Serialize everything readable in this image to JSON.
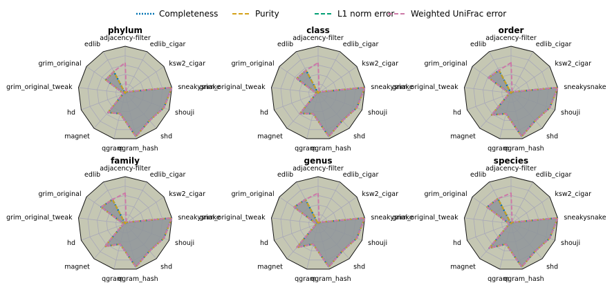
{
  "chart_data": {
    "type": "radar",
    "axes": [
      "adjacency-filter",
      "edlib_cigar",
      "ksw2_cigar",
      "sneakysnake",
      "shouji",
      "shd",
      "qgram_hash",
      "qgram",
      "magnet",
      "hd",
      "grim_original_tweak",
      "grim_original",
      "edlib"
    ],
    "rlim": [
      0,
      1
    ],
    "grid": true,
    "legend_position": "top",
    "series_styles": [
      {
        "name": "Completeness",
        "color": "#0072B2",
        "dash": "dotted"
      },
      {
        "name": "Purity",
        "color": "#D4A017",
        "dash": "dashed"
      },
      {
        "name": "L1 norm error",
        "color": "#009E73",
        "dash": "dashed"
      },
      {
        "name": "Weighted UniFrac error",
        "color": "#CC79A7",
        "dash": "dashed"
      }
    ],
    "panels": [
      {
        "title": "phylum",
        "series": [
          {
            "name": "Completeness",
            "values": [
              0.0,
              0.05,
              0.05,
              1.0,
              0.88,
              0.78,
              0.95,
              0.45,
              0.55,
              0.05,
              0.05,
              0.5,
              0.52
            ]
          },
          {
            "name": "Purity",
            "values": [
              0.0,
              0.05,
              0.05,
              1.0,
              0.88,
              0.78,
              0.95,
              0.45,
              0.55,
              0.05,
              0.05,
              0.5,
              0.52
            ]
          },
          {
            "name": "L1 norm error",
            "values": [
              0.0,
              0.05,
              0.05,
              1.0,
              0.88,
              0.78,
              0.95,
              0.45,
              0.55,
              0.05,
              0.05,
              0.5,
              0.52
            ]
          },
          {
            "name": "Weighted UniFrac error",
            "values": [
              0.65,
              0.05,
              0.05,
              1.0,
              0.88,
              0.78,
              0.95,
              0.45,
              0.55,
              0.05,
              0.05,
              0.5,
              0.52
            ]
          }
        ]
      },
      {
        "title": "class",
        "series": [
          {
            "name": "Completeness",
            "values": [
              0.0,
              0.05,
              0.05,
              1.0,
              0.88,
              0.78,
              0.95,
              0.45,
              0.58,
              0.05,
              0.05,
              0.55,
              0.55
            ]
          },
          {
            "name": "Purity",
            "values": [
              0.0,
              0.05,
              0.05,
              1.0,
              0.88,
              0.78,
              0.95,
              0.45,
              0.58,
              0.05,
              0.05,
              0.55,
              0.55
            ]
          },
          {
            "name": "L1 norm error",
            "values": [
              0.0,
              0.05,
              0.05,
              1.0,
              0.88,
              0.78,
              0.95,
              0.45,
              0.58,
              0.05,
              0.05,
              0.55,
              0.55
            ]
          },
          {
            "name": "Weighted UniFrac error",
            "values": [
              0.65,
              0.05,
              0.05,
              1.0,
              0.88,
              0.78,
              0.95,
              0.45,
              0.58,
              0.05,
              0.05,
              0.55,
              0.55
            ]
          }
        ]
      },
      {
        "title": "order",
        "series": [
          {
            "name": "Completeness",
            "values": [
              0.0,
              0.05,
              0.05,
              1.0,
              0.88,
              0.78,
              0.95,
              0.45,
              0.62,
              0.05,
              0.05,
              0.58,
              0.55
            ]
          },
          {
            "name": "Purity",
            "values": [
              0.0,
              0.05,
              0.05,
              1.0,
              0.88,
              0.78,
              0.95,
              0.45,
              0.62,
              0.05,
              0.05,
              0.58,
              0.55
            ]
          },
          {
            "name": "L1 norm error",
            "values": [
              0.0,
              0.05,
              0.05,
              1.0,
              0.88,
              0.78,
              0.95,
              0.45,
              0.62,
              0.05,
              0.05,
              0.58,
              0.55
            ]
          },
          {
            "name": "Weighted UniFrac error",
            "values": [
              0.65,
              0.05,
              0.05,
              1.0,
              0.88,
              0.78,
              0.95,
              0.45,
              0.62,
              0.05,
              0.05,
              0.58,
              0.55
            ]
          }
        ]
      },
      {
        "title": "family",
        "series": [
          {
            "name": "Completeness",
            "values": [
              0.0,
              0.05,
              0.05,
              1.0,
              0.88,
              0.78,
              0.95,
              0.45,
              0.65,
              0.05,
              0.05,
              0.62,
              0.58
            ]
          },
          {
            "name": "Purity",
            "values": [
              0.0,
              0.05,
              0.05,
              1.0,
              0.88,
              0.78,
              0.95,
              0.45,
              0.65,
              0.05,
              0.05,
              0.62,
              0.58
            ]
          },
          {
            "name": "L1 norm error",
            "values": [
              0.0,
              0.05,
              0.05,
              1.0,
              0.88,
              0.78,
              0.95,
              0.45,
              0.65,
              0.05,
              0.05,
              0.62,
              0.58
            ]
          },
          {
            "name": "Weighted UniFrac error",
            "values": [
              0.65,
              0.05,
              0.05,
              1.0,
              0.88,
              0.78,
              0.95,
              0.45,
              0.65,
              0.05,
              0.05,
              0.62,
              0.58
            ]
          }
        ]
      },
      {
        "title": "genus",
        "series": [
          {
            "name": "Completeness",
            "values": [
              0.0,
              0.05,
              0.05,
              1.0,
              0.88,
              0.78,
              0.95,
              0.45,
              0.68,
              0.05,
              0.05,
              0.62,
              0.58
            ]
          },
          {
            "name": "Purity",
            "values": [
              0.0,
              0.05,
              0.05,
              1.0,
              0.88,
              0.78,
              0.95,
              0.45,
              0.68,
              0.05,
              0.05,
              0.62,
              0.58
            ]
          },
          {
            "name": "L1 norm error",
            "values": [
              0.0,
              0.05,
              0.05,
              1.0,
              0.88,
              0.78,
              0.95,
              0.45,
              0.68,
              0.05,
              0.05,
              0.62,
              0.58
            ]
          },
          {
            "name": "Weighted UniFrac error",
            "values": [
              0.65,
              0.05,
              0.05,
              1.0,
              0.88,
              0.78,
              0.95,
              0.45,
              0.68,
              0.05,
              0.05,
              0.62,
              0.58
            ]
          }
        ]
      },
      {
        "title": "species",
        "series": [
          {
            "name": "Completeness",
            "values": [
              0.0,
              0.05,
              0.05,
              1.0,
              0.88,
              0.78,
              0.95,
              0.45,
              0.7,
              0.05,
              0.05,
              0.62,
              0.6
            ]
          },
          {
            "name": "Purity",
            "values": [
              0.0,
              0.05,
              0.05,
              1.0,
              0.88,
              0.78,
              0.95,
              0.45,
              0.7,
              0.05,
              0.05,
              0.62,
              0.6
            ]
          },
          {
            "name": "L1 norm error",
            "values": [
              0.0,
              0.05,
              0.05,
              1.0,
              0.88,
              0.78,
              0.95,
              0.45,
              0.7,
              0.05,
              0.05,
              0.62,
              0.6
            ]
          },
          {
            "name": "Weighted UniFrac error",
            "values": [
              0.65,
              0.05,
              0.05,
              1.0,
              0.88,
              0.78,
              0.95,
              0.45,
              0.7,
              0.05,
              0.05,
              0.62,
              0.6
            ]
          }
        ]
      }
    ],
    "colors": {
      "panel_fill": "#c5c7b3",
      "panel_edge": "#111111",
      "grid_line": "#a8a8b8",
      "series_fill": "#8f959a"
    }
  }
}
